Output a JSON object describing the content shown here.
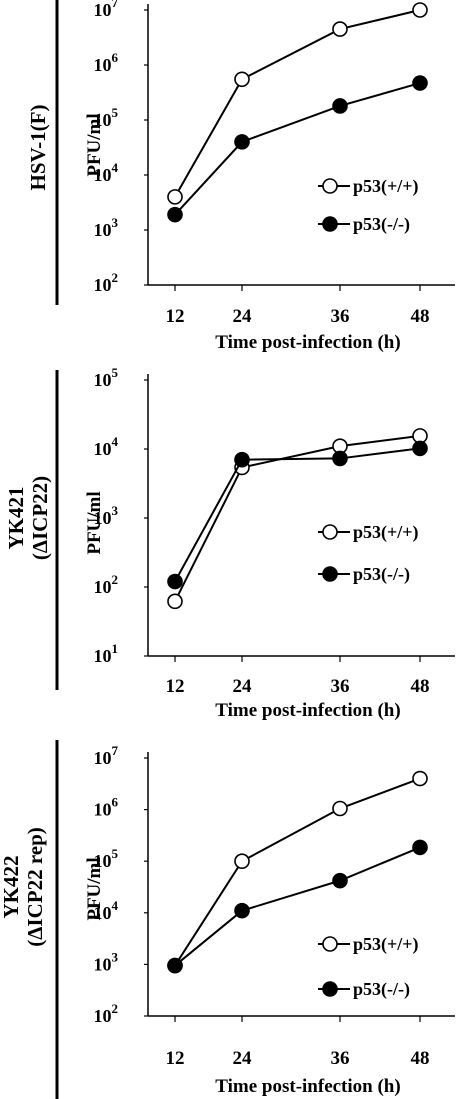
{
  "chart_data": [
    {
      "type": "line",
      "row_label": [
        "HSV-1(F)"
      ],
      "ylabel": "PFU/ml",
      "xlabel": "Time post-infection (h)",
      "scale": "log",
      "x": [
        12,
        24,
        36,
        48
      ],
      "xticks": [
        "12",
        "24",
        "36",
        "48"
      ],
      "yticks": [
        {
          "base": "10",
          "exp": "7"
        },
        {
          "base": "10",
          "exp": "6"
        },
        {
          "base": "10",
          "exp": "5"
        },
        {
          "base": "10",
          "exp": "4"
        },
        {
          "base": "10",
          "exp": "3"
        },
        {
          "base": "10",
          "exp": "2"
        }
      ],
      "ylim": [
        100,
        10000000
      ],
      "legend_position": "right",
      "series": [
        {
          "name": "p53(+/+)",
          "marker": "open-circle",
          "values": [
            4000,
            550000,
            4500000,
            10000000
          ]
        },
        {
          "name": "p53(-/-)",
          "marker": "filled-circle",
          "values": [
            1900,
            40000,
            180000,
            470000
          ]
        }
      ]
    },
    {
      "type": "line",
      "row_label": [
        "YK421",
        "(ΔICP22)"
      ],
      "ylabel": "PFU/ml",
      "xlabel": "Time post-infection (h)",
      "scale": "log",
      "x": [
        12,
        24,
        36,
        48
      ],
      "xticks": [
        "12",
        "24",
        "36",
        "48"
      ],
      "yticks": [
        {
          "base": "10",
          "exp": "5"
        },
        {
          "base": "10",
          "exp": "4"
        },
        {
          "base": "10",
          "exp": "3"
        },
        {
          "base": "10",
          "exp": "2"
        },
        {
          "base": "10",
          "exp": "1"
        }
      ],
      "ylim": [
        10,
        100000
      ],
      "legend_position": "right",
      "series": [
        {
          "name": "p53(+/+)",
          "marker": "open-circle",
          "values": [
            62,
            5400,
            11000,
            15500
          ]
        },
        {
          "name": "p53(-/-)",
          "marker": "filled-circle",
          "values": [
            120,
            7000,
            7300,
            10200
          ]
        }
      ]
    },
    {
      "type": "line",
      "row_label": [
        "YK422",
        "(ΔICP22 rep)"
      ],
      "ylabel": "PFU/ml",
      "xlabel": "Time post-infection (h)",
      "scale": "log",
      "x": [
        12,
        24,
        36,
        48
      ],
      "xticks": [
        "12",
        "24",
        "36",
        "48"
      ],
      "yticks": [
        {
          "base": "10",
          "exp": "7"
        },
        {
          "base": "10",
          "exp": "6"
        },
        {
          "base": "10",
          "exp": "5"
        },
        {
          "base": "10",
          "exp": "4"
        },
        {
          "base": "10",
          "exp": "3"
        },
        {
          "base": "10",
          "exp": "2"
        }
      ],
      "ylim": [
        100,
        10000000
      ],
      "legend_position": "right",
      "series": [
        {
          "name": "p53(+/+)",
          "marker": "open-circle",
          "values": [
            950,
            100000,
            1050000,
            4000000
          ]
        },
        {
          "name": "p53(-/-)",
          "marker": "filled-circle",
          "values": [
            950,
            11000,
            42000,
            185000
          ]
        }
      ]
    }
  ]
}
